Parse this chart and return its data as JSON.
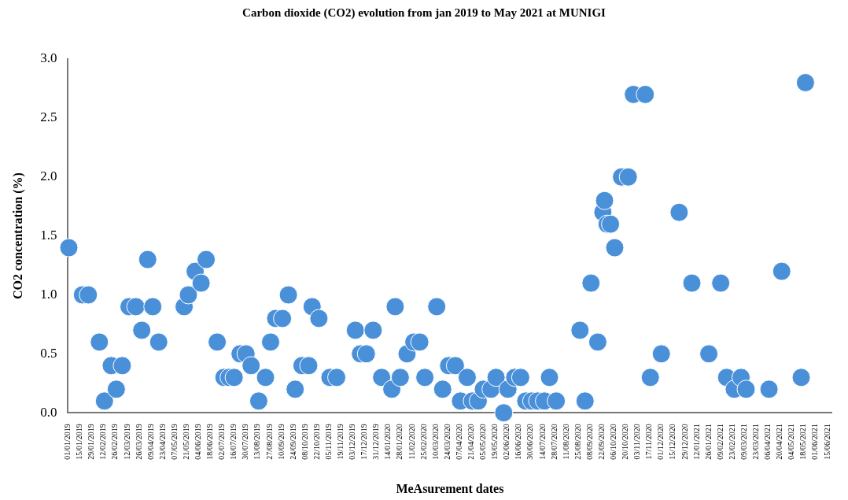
{
  "chart_data": {
    "type": "scatter",
    "title": "Carbon dioxide (CO2) evolution from jan 2019 to May 2021 at MUNIGI",
    "xlabel": "MeAsurement dates",
    "ylabel": "CO2 concentration (%)",
    "marker": "circle",
    "grid": false,
    "legend": false,
    "xlim": [
      "2019-01-01",
      "2021-06-20"
    ],
    "xticks": [
      {
        "value": "2019-01-01",
        "label": "01/01/2019"
      },
      {
        "value": "2019-01-15",
        "label": "15/01/2019"
      },
      {
        "value": "2019-01-29",
        "label": "29/01/2019"
      },
      {
        "value": "2019-02-12",
        "label": "12/02/2019"
      },
      {
        "value": "2019-02-26",
        "label": "26/02/2019"
      },
      {
        "value": "2019-03-12",
        "label": "12/03/2019"
      },
      {
        "value": "2019-03-26",
        "label": "26/03/2019"
      },
      {
        "value": "2019-04-09",
        "label": "09/04/2019"
      },
      {
        "value": "2019-04-23",
        "label": "23/04/2019"
      },
      {
        "value": "2019-05-07",
        "label": "07/05/2019"
      },
      {
        "value": "2019-05-21",
        "label": "21/05/2019"
      },
      {
        "value": "2019-06-04",
        "label": "04/06/2019"
      },
      {
        "value": "2019-06-18",
        "label": "18/06/2019"
      },
      {
        "value": "2019-07-02",
        "label": "02/07/2019"
      },
      {
        "value": "2019-07-16",
        "label": "16/07/2019"
      },
      {
        "value": "2019-07-30",
        "label": "30/07/2019"
      },
      {
        "value": "2019-08-13",
        "label": "13/08/2019"
      },
      {
        "value": "2019-08-27",
        "label": "27/08/2019"
      },
      {
        "value": "2019-09-10",
        "label": "10/09/2019"
      },
      {
        "value": "2019-09-24",
        "label": "24/09/2019"
      },
      {
        "value": "2019-10-08",
        "label": "08/10/2019"
      },
      {
        "value": "2019-10-22",
        "label": "22/10/2019"
      },
      {
        "value": "2019-11-05",
        "label": "05/11/2019"
      },
      {
        "value": "2019-11-19",
        "label": "19/11/2019"
      },
      {
        "value": "2019-12-03",
        "label": "03/12/2019"
      },
      {
        "value": "2019-12-17",
        "label": "17/12/2019"
      },
      {
        "value": "2019-12-31",
        "label": "31/12/2019"
      },
      {
        "value": "2020-01-14",
        "label": "14/01/2020"
      },
      {
        "value": "2020-01-28",
        "label": "28/01/2020"
      },
      {
        "value": "2020-02-11",
        "label": "11/02/2020"
      },
      {
        "value": "2020-02-25",
        "label": "25/02/2020"
      },
      {
        "value": "2020-03-10",
        "label": "10/03/2020"
      },
      {
        "value": "2020-03-24",
        "label": "24/03/2020"
      },
      {
        "value": "2020-04-07",
        "label": "07/04/2020"
      },
      {
        "value": "2020-04-21",
        "label": "21/04/2020"
      },
      {
        "value": "2020-05-05",
        "label": "05/05/2020"
      },
      {
        "value": "2020-05-19",
        "label": "19/05/2020"
      },
      {
        "value": "2020-06-02",
        "label": "02/06/2020"
      },
      {
        "value": "2020-06-16",
        "label": "16/06/2020"
      },
      {
        "value": "2020-06-30",
        "label": "30/06/2020"
      },
      {
        "value": "2020-07-14",
        "label": "14/07/2020"
      },
      {
        "value": "2020-07-28",
        "label": "28/07/2020"
      },
      {
        "value": "2020-08-11",
        "label": "11/08/2020"
      },
      {
        "value": "2020-08-25",
        "label": "25/08/2020"
      },
      {
        "value": "2020-09-08",
        "label": "08/09/2020"
      },
      {
        "value": "2020-09-22",
        "label": "22/09/2020"
      },
      {
        "value": "2020-10-06",
        "label": "06/10/2020"
      },
      {
        "value": "2020-10-20",
        "label": "20/10/2020"
      },
      {
        "value": "2020-11-03",
        "label": "03/11/2020"
      },
      {
        "value": "2020-11-17",
        "label": "17/11/2020"
      },
      {
        "value": "2020-12-01",
        "label": "01/12/2020"
      },
      {
        "value": "2020-12-15",
        "label": "15/12/2020"
      },
      {
        "value": "2020-12-29",
        "label": "29/12/2020"
      },
      {
        "value": "2021-01-12",
        "label": "12/01/2021"
      },
      {
        "value": "2021-01-26",
        "label": "26/01/2021"
      },
      {
        "value": "2021-02-09",
        "label": "09/02/2021"
      },
      {
        "value": "2021-02-23",
        "label": "23/02/2021"
      },
      {
        "value": "2021-03-09",
        "label": "09/03/2021"
      },
      {
        "value": "2021-03-23",
        "label": "23/03/2021"
      },
      {
        "value": "2021-04-06",
        "label": "06/04/2021"
      },
      {
        "value": "2021-04-20",
        "label": "20/04/2021"
      },
      {
        "value": "2021-05-04",
        "label": "04/05/2021"
      },
      {
        "value": "2021-05-18",
        "label": "18/05/2021"
      },
      {
        "value": "2021-06-01",
        "label": "01/06/2021"
      },
      {
        "value": "2021-06-15",
        "label": "15/06/2021"
      }
    ],
    "ylim": [
      0,
      3
    ],
    "yticks": [
      {
        "value": 0,
        "label": "0.0"
      },
      {
        "value": 0.5,
        "label": "0.5"
      },
      {
        "value": 1,
        "label": "1.0"
      },
      {
        "value": 1.5,
        "label": "1.5"
      },
      {
        "value": 2,
        "label": "2.0"
      },
      {
        "value": 2.5,
        "label": "2.5"
      },
      {
        "value": 3,
        "label": "3.0"
      }
    ],
    "series": [
      {
        "color": "#4a90d9",
        "x": [
          "2019-01-02",
          "2019-01-18",
          "2019-01-25",
          "2019-02-07",
          "2019-02-13",
          "2019-02-21",
          "2019-02-27",
          "2019-03-06",
          "2019-03-14",
          "2019-03-22",
          "2019-03-29",
          "2019-04-05",
          "2019-04-11",
          "2019-04-18",
          "2019-05-18",
          "2019-05-23",
          "2019-05-31",
          "2019-06-07",
          "2019-06-13",
          "2019-06-26",
          "2019-07-04",
          "2019-07-10",
          "2019-07-16",
          "2019-07-23",
          "2019-07-30",
          "2019-08-05",
          "2019-08-14",
          "2019-08-22",
          "2019-08-28",
          "2019-09-03",
          "2019-09-11",
          "2019-09-18",
          "2019-09-26",
          "2019-10-04",
          "2019-10-12",
          "2019-10-16",
          "2019-10-24",
          "2019-11-06",
          "2019-11-14",
          "2019-12-06",
          "2019-12-12",
          "2019-12-19",
          "2019-12-27",
          "2020-01-06",
          "2020-01-18",
          "2020-01-22",
          "2020-01-28",
          "2020-02-05",
          "2020-02-13",
          "2020-02-20",
          "2020-02-26",
          "2020-03-11",
          "2020-03-18",
          "2020-03-25",
          "2020-04-02",
          "2020-04-08",
          "2020-04-16",
          "2020-04-22",
          "2020-04-29",
          "2020-05-05",
          "2020-05-14",
          "2020-05-20",
          "2020-05-29",
          "2020-06-03",
          "2020-06-11",
          "2020-06-18",
          "2020-06-24",
          "2020-07-01",
          "2020-07-08",
          "2020-07-16",
          "2020-07-22",
          "2020-07-30",
          "2020-08-27",
          "2020-09-02",
          "2020-09-09",
          "2020-09-17",
          "2020-09-23",
          "2020-09-25",
          "2020-09-28",
          "2020-10-02",
          "2020-10-07",
          "2020-10-15",
          "2020-10-23",
          "2020-10-29",
          "2020-11-12",
          "2020-11-18",
          "2020-12-01",
          "2020-12-22",
          "2021-01-06",
          "2021-01-26",
          "2021-02-09",
          "2021-02-16",
          "2021-02-25",
          "2021-03-05",
          "2021-03-11",
          "2021-04-07",
          "2021-04-22",
          "2021-05-15",
          "2021-05-20"
        ],
        "values": [
          1.4,
          1.0,
          1.0,
          0.6,
          0.1,
          0.4,
          0.2,
          0.4,
          0.9,
          0.9,
          0.7,
          1.3,
          0.9,
          0.6,
          0.9,
          1.0,
          1.2,
          1.1,
          1.3,
          0.6,
          0.3,
          0.3,
          0.3,
          0.5,
          0.5,
          0.4,
          0.1,
          0.3,
          0.6,
          0.8,
          0.8,
          1.0,
          0.2,
          0.4,
          0.4,
          0.9,
          0.8,
          0.3,
          0.3,
          0.7,
          0.5,
          0.5,
          0.7,
          0.3,
          0.2,
          0.9,
          0.3,
          0.5,
          0.6,
          0.6,
          0.3,
          0.9,
          0.2,
          0.4,
          0.4,
          0.1,
          0.3,
          0.1,
          0.1,
          0.2,
          0.2,
          0.3,
          0.0,
          0.2,
          0.3,
          0.3,
          0.1,
          0.1,
          0.1,
          0.1,
          0.3,
          0.1,
          0.7,
          0.1,
          1.1,
          0.6,
          1.7,
          1.8,
          1.6,
          1.6,
          1.4,
          2.0,
          2.0,
          2.7,
          2.7,
          0.3,
          0.5,
          1.7,
          1.1,
          0.5,
          1.1,
          0.3,
          0.2,
          0.3,
          0.2,
          0.2,
          1.2,
          0.3,
          2.8
        ]
      }
    ]
  }
}
